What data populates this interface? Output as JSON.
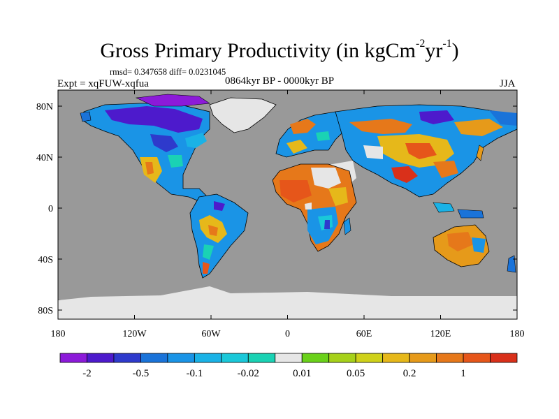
{
  "figure": {
    "title_main": "Gross Primary Productivity (in kgCm",
    "title_exp1": "-2",
    "title_mid": "yr",
    "title_exp2": "-1",
    "title_end": ")",
    "stats": "rmsd= 0.347658 diff= 0.0231045",
    "experiment": "Expt = xqFUW-xqfua",
    "period": "0864kyr BP - 0000kyr BP",
    "season": "JJA"
  },
  "map": {
    "projection": "cylindrical-equidistant",
    "lon_range": [
      -180,
      180
    ],
    "lat_range": [
      -90,
      90
    ],
    "ocean_color": "#999999",
    "ice_color": "#e6e6e6",
    "y_ticks": [
      "80N",
      "40N",
      "0",
      "40S",
      "80S"
    ],
    "x_ticks": [
      "180",
      "120W",
      "60W",
      "0",
      "60E",
      "120E",
      "180"
    ]
  },
  "colorbar": {
    "colors": [
      "#8c1ad9",
      "#4d1acc",
      "#2e3acc",
      "#1a73d9",
      "#1a94e6",
      "#1ab2e6",
      "#1ac8d9",
      "#1ad2b4",
      "#e6e6e6",
      "#6ad11a",
      "#a6d11a",
      "#cfd11a",
      "#e6b81a",
      "#e69a1a",
      "#e6781a",
      "#e6561a",
      "#d9301a"
    ],
    "labels": [
      "-2",
      "-0.5",
      "-0.1",
      "-0.02",
      "0.01",
      "0.05",
      "0.2",
      "1"
    ]
  }
}
